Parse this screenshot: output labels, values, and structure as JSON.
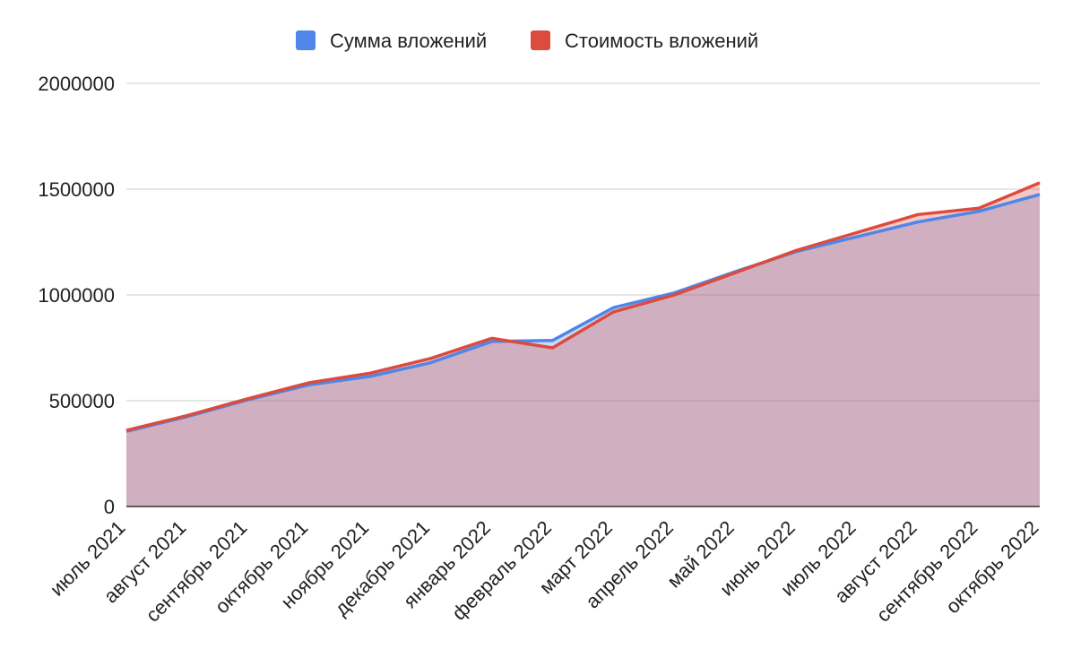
{
  "chart_data": {
    "type": "area",
    "categories": [
      "июль 2021",
      "август 2021",
      "сентябрь 2021",
      "октябрь 2021",
      "ноябрь 2021",
      "декабрь 2021",
      "январь 2022",
      "февраль 2022",
      "март 2022",
      "апрель 2022",
      "май 2022",
      "июнь 2022",
      "июль 2022",
      "август 2022",
      "сентябрь 2022",
      "октябрь 2022"
    ],
    "series": [
      {
        "name": "Сумма вложений",
        "color": "#4f86e8",
        "values": [
          355000,
          425000,
          505000,
          575000,
          615000,
          680000,
          780000,
          785000,
          940000,
          1010000,
          1110000,
          1205000,
          1275000,
          1345000,
          1395000,
          1475000
        ]
      },
      {
        "name": "Стоимость вложений",
        "color": "#dc4b3e",
        "values": [
          360000,
          430000,
          510000,
          585000,
          630000,
          700000,
          795000,
          750000,
          920000,
          1000000,
          1105000,
          1210000,
          1295000,
          1380000,
          1410000,
          1530000
        ]
      }
    ],
    "ylim": [
      0,
      2000000
    ],
    "yticks": [
      "0",
      "500000",
      "1000000",
      "1500000",
      "2000000"
    ],
    "title": "",
    "xlabel": "",
    "ylabel": "",
    "grid": true,
    "legend_position": "top-center"
  }
}
